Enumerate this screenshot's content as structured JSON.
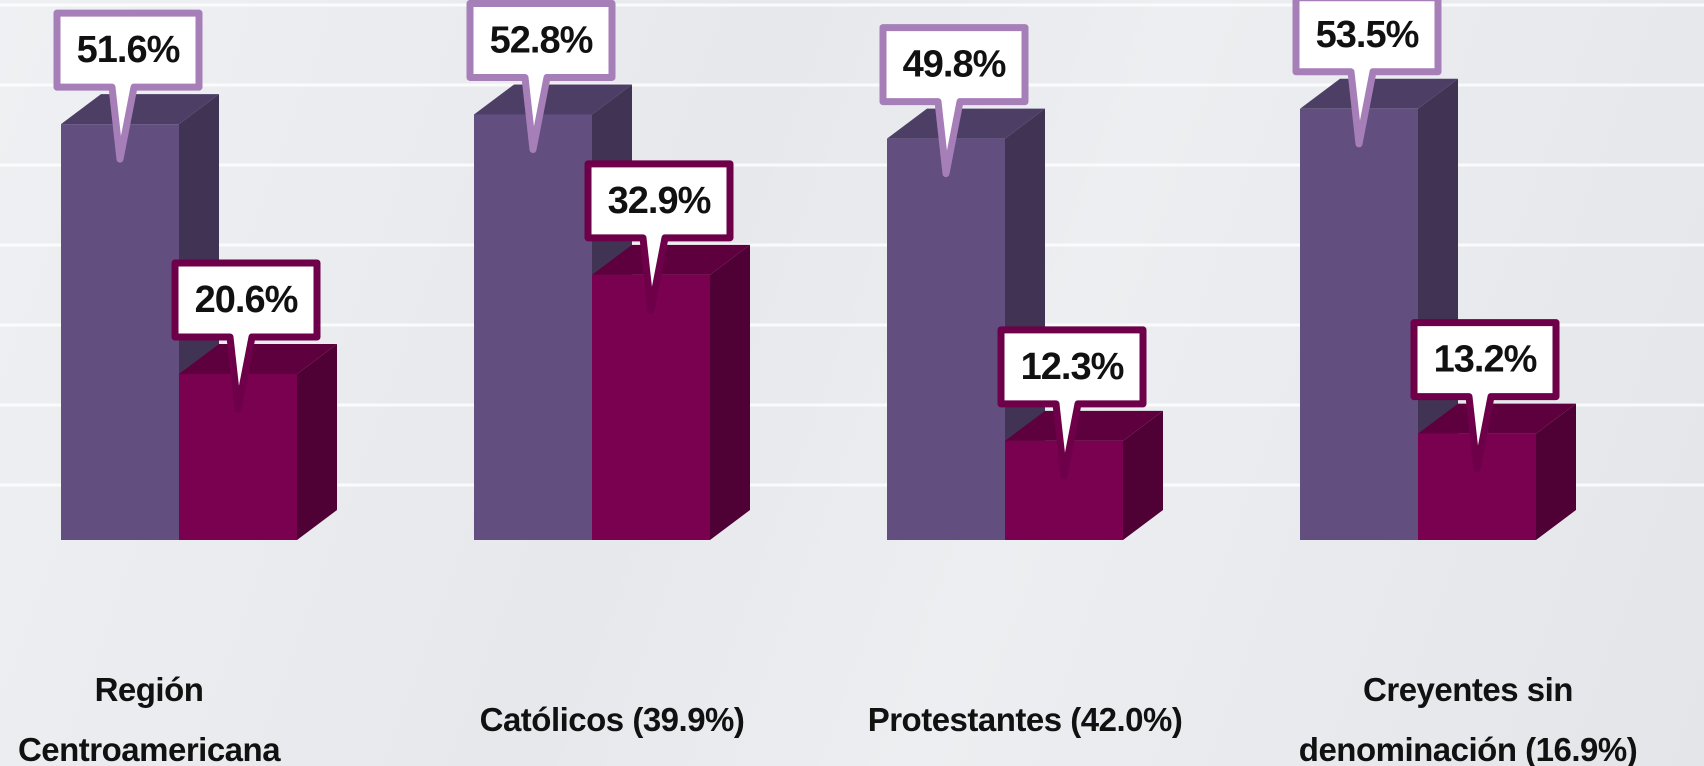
{
  "chart_data": {
    "type": "bar3d",
    "categories": [
      "Región Centroamericana",
      "Católicos (39.9%)",
      "Protestantes (42.0%)",
      "Creyentes sin denominación (16.9%)"
    ],
    "series": [
      {
        "color": "#624f80",
        "values": [
          51.6,
          52.8,
          49.8,
          53.5
        ],
        "value_labels": [
          "51.6%",
          "52.8%",
          "49.8%",
          "53.5%"
        ]
      },
      {
        "color": "#7a0050",
        "values": [
          20.6,
          32.9,
          12.3,
          13.2
        ],
        "value_labels": [
          "20.6%",
          "32.9%",
          "12.3%",
          "13.2%"
        ]
      }
    ],
    "ylim": [
      0,
      67
    ]
  }
}
